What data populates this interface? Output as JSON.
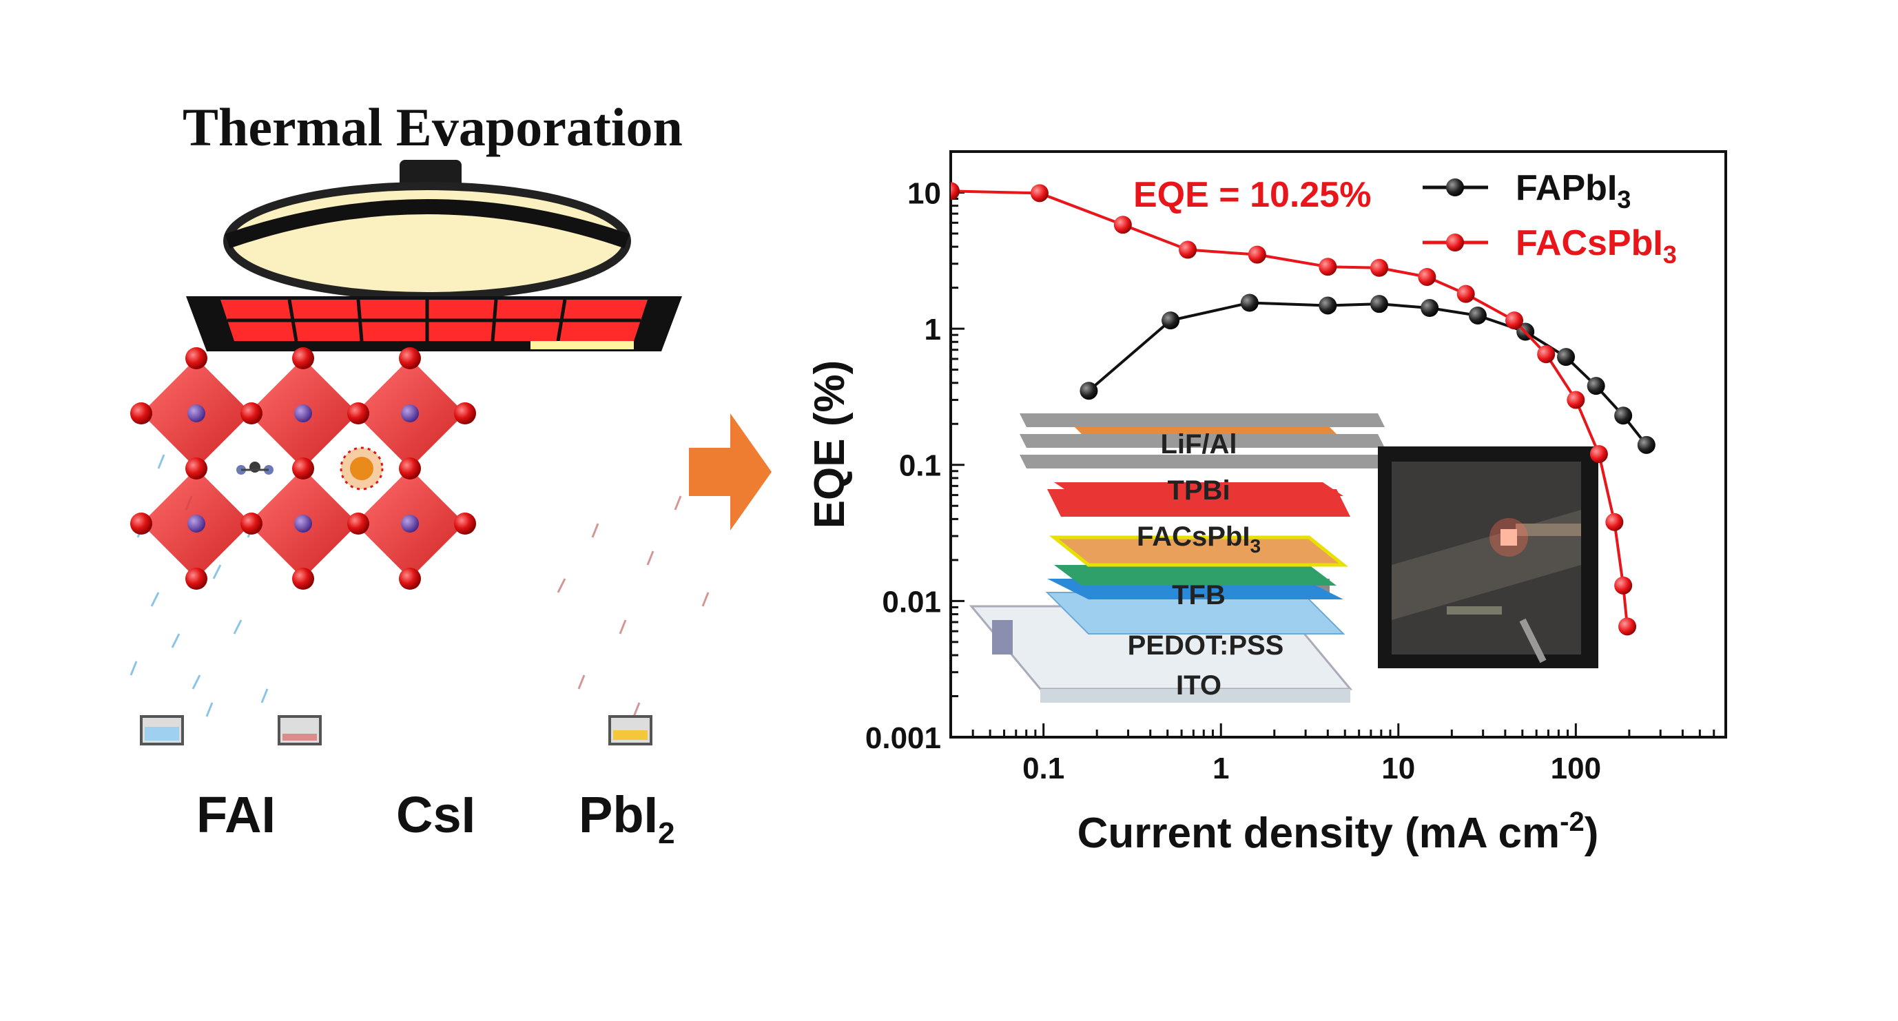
{
  "illustration": {
    "title": "Thermal Evaporation",
    "sources": [
      {
        "label": "FAI",
        "sub": ""
      },
      {
        "label": "CsI",
        "sub": ""
      },
      {
        "label": "PbI",
        "sub": "2"
      }
    ],
    "arrow_color": "#ef7d31"
  },
  "chart_data": {
    "type": "scatter",
    "xscale": "log",
    "yscale": "log",
    "xlim": [
      0.03,
      700
    ],
    "ylim": [
      0.001,
      20
    ],
    "xticks": [
      0.1,
      1,
      10,
      100
    ],
    "xtick_labels": [
      "0.1",
      "1",
      "10",
      "100"
    ],
    "yticks": [
      0.001,
      0.01,
      0.1,
      1,
      10
    ],
    "ytick_labels": [
      "0.001",
      "0.01",
      "0.1",
      "1",
      "10"
    ],
    "xlabel_main": "Current density (mA cm",
    "xlabel_sup": "-2",
    "xlabel_end": ")",
    "ylabel": "EQE (%)",
    "annotation": "EQE = 10.25%",
    "legend_position": "top-right",
    "series": [
      {
        "name_main": "FAPbI",
        "name_sub": "3",
        "color": "#111111",
        "x": [
          0.18,
          0.52,
          1.45,
          4.0,
          7.8,
          15,
          28,
          52,
          88,
          130,
          185,
          250
        ],
        "y": [
          0.35,
          1.15,
          1.55,
          1.48,
          1.52,
          1.42,
          1.25,
          0.95,
          0.62,
          0.38,
          0.23,
          0.14
        ]
      },
      {
        "name_main": "FACsPbI",
        "name_sub": "3",
        "color": "#e8161a",
        "x": [
          0.03,
          0.095,
          0.28,
          0.65,
          1.6,
          4.0,
          7.8,
          14.5,
          24,
          45,
          68,
          100,
          135,
          165,
          185,
          195
        ],
        "y": [
          10.25,
          9.9,
          5.8,
          3.8,
          3.5,
          2.85,
          2.8,
          2.4,
          1.8,
          1.15,
          0.65,
          0.3,
          0.12,
          0.038,
          0.013,
          0.0065
        ]
      }
    ]
  },
  "inset_device": {
    "layers": [
      {
        "label": "LiF/Al",
        "sub": ""
      },
      {
        "label": "TPBi",
        "sub": ""
      },
      {
        "label": "FACsPbI",
        "sub": "3"
      },
      {
        "label": "TFB",
        "sub": ""
      },
      {
        "label": "PEDOT:PSS",
        "sub": ""
      },
      {
        "label": "ITO",
        "sub": ""
      }
    ]
  }
}
